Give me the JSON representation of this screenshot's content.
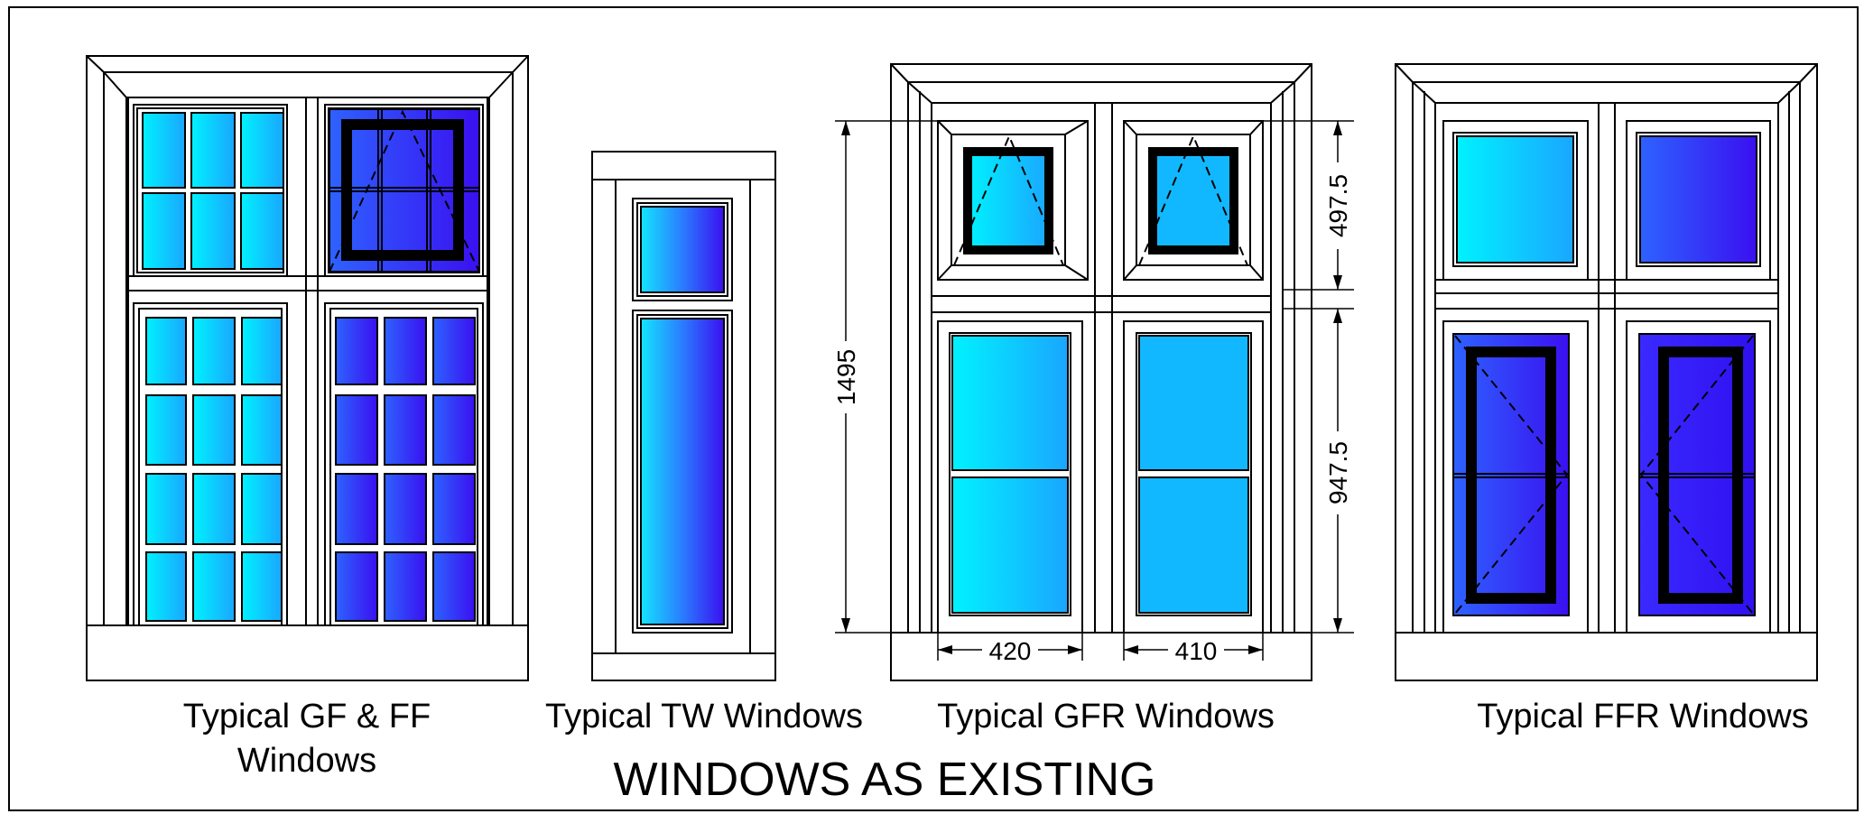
{
  "drawing_title": "WINDOWS AS EXISTING",
  "windows": [
    {
      "label_line1": "Typical GF & FF",
      "label_line2": "Windows"
    },
    {
      "label_line1": "Typical TW Windows"
    },
    {
      "label_line1": "Typical GFR Windows"
    },
    {
      "label_line1": "Typical FFR Windows"
    }
  ],
  "dimensions": {
    "overall_height": "1495",
    "upper_sash_height": "497.5",
    "lower_sash_height": "947.5",
    "left_sash_width": "420",
    "right_sash_width": "410"
  },
  "colors": {
    "glass_cyan": "#00f0ff",
    "glass_mid": "#12b4ff",
    "glass_blue": "#3a3aff",
    "glass_violet": "#3210f0",
    "line": "#000000"
  }
}
